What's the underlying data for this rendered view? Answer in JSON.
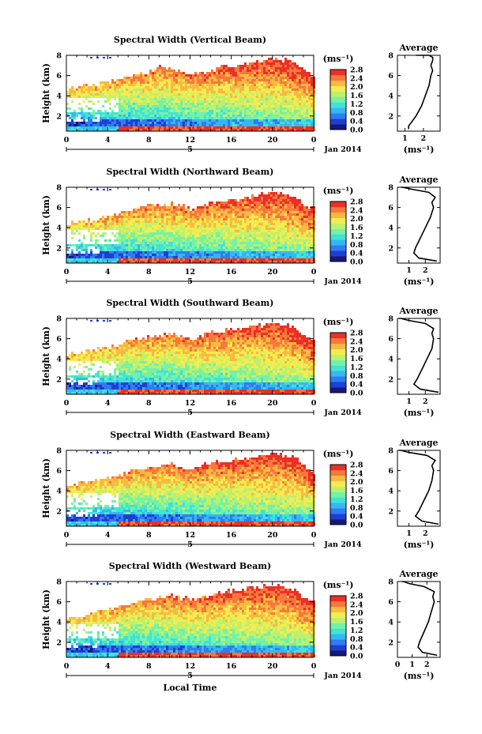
{
  "colorbar": {
    "unit": "(ms⁻¹)",
    "ticks": [
      "0.0",
      "0.4",
      "0.8",
      "1.2",
      "1.6",
      "2.0",
      "2.4",
      "2.8"
    ],
    "colors": [
      "#15197a",
      "#1f3ed6",
      "#2f7df0",
      "#34b8f2",
      "#42e3d6",
      "#74f2a6",
      "#bff06c",
      "#f3ec4f",
      "#f9b941",
      "#f6793a",
      "#ea3027"
    ]
  },
  "date_label": "Jan 2014",
  "date_day": "5",
  "x_label": "Local Time",
  "avg_title": "Average",
  "avg_unit": "(ms⁻¹)",
  "chart_data": [
    {
      "type": "heatmap",
      "title": "Spectral Width (Vertical Beam)",
      "ylabel": "Height (km)",
      "xlabel": "",
      "x_ticks": [
        "0",
        "4",
        "8",
        "12",
        "16",
        "20",
        "0"
      ],
      "y_ticks": [
        "2",
        "4",
        "6",
        "8"
      ],
      "ylim": [
        0.5,
        8
      ],
      "xlim": [
        0,
        24
      ],
      "colorbar_range": [
        0.0,
        2.8
      ],
      "cloud_top_km": [
        [
          0,
          4.8
        ],
        [
          2,
          5.1
        ],
        [
          4,
          5.5
        ],
        [
          6,
          6.0
        ],
        [
          8,
          6.5
        ],
        [
          9,
          7.0
        ],
        [
          10,
          6.8
        ],
        [
          12,
          6.3
        ],
        [
          14,
          6.5
        ],
        [
          15,
          7.2
        ],
        [
          16,
          7.0
        ],
        [
          18,
          7.5
        ],
        [
          20,
          7.8
        ],
        [
          22,
          7.5
        ],
        [
          23,
          6.5
        ],
        [
          24,
          6.0
        ]
      ],
      "average": {
        "x": [
          1.2,
          1.2,
          1.4,
          1.6,
          1.9,
          2.1,
          2.3,
          2.4,
          2.5,
          2.4,
          2.5,
          2.5,
          2.3,
          1.6
        ],
        "y": [
          0.7,
          1.0,
          1.5,
          2.0,
          3.0,
          4.0,
          5.0,
          6.0,
          6.5,
          7.0,
          7.5,
          7.8,
          8.0,
          8.0
        ],
        "xlim": [
          0.6,
          2.9
        ],
        "ylim": [
          0.5,
          8
        ],
        "x_ticks": [
          1,
          2
        ],
        "y_ticks": [
          2,
          4,
          6,
          8
        ]
      }
    },
    {
      "type": "heatmap",
      "title": "Spectral Width (Northward Beam)",
      "ylabel": "Height (km)",
      "xlabel": "",
      "x_ticks": [
        "0",
        "4",
        "8",
        "12",
        "16",
        "20",
        "0"
      ],
      "y_ticks": [
        "2",
        "4",
        "6",
        "8"
      ],
      "ylim": [
        0.5,
        8
      ],
      "xlim": [
        0,
        24
      ],
      "colorbar_range": [
        0.0,
        2.8
      ],
      "cloud_top_km": [
        [
          0,
          4.5
        ],
        [
          2,
          4.8
        ],
        [
          4,
          5.2
        ],
        [
          6,
          5.8
        ],
        [
          8,
          6.3
        ],
        [
          10,
          6.5
        ],
        [
          12,
          6.0
        ],
        [
          14,
          6.6
        ],
        [
          16,
          6.8
        ],
        [
          18,
          7.3
        ],
        [
          20,
          7.6
        ],
        [
          22,
          7.4
        ],
        [
          23,
          6.4
        ],
        [
          24,
          6.0
        ]
      ],
      "average": {
        "x": [
          2.7,
          1.6,
          1.3,
          1.4,
          1.7,
          2.0,
          2.3,
          2.5,
          2.4,
          2.6,
          2.2,
          1.2,
          0.6,
          0.5
        ],
        "y": [
          0.7,
          1.0,
          1.5,
          2.0,
          3.0,
          4.0,
          5.0,
          6.0,
          6.5,
          7.0,
          7.5,
          7.8,
          8.0,
          8.0
        ],
        "xlim": [
          0.3,
          2.9
        ],
        "ylim": [
          0.5,
          8
        ],
        "x_ticks": [
          1,
          2
        ],
        "y_ticks": [
          2,
          4,
          6,
          8
        ]
      }
    },
    {
      "type": "heatmap",
      "title": "Spectral Width (Southward Beam)",
      "ylabel": "Height (km)",
      "xlabel": "",
      "x_ticks": [
        "0",
        "4",
        "8",
        "12",
        "16",
        "20",
        "0"
      ],
      "y_ticks": [
        "2",
        "4",
        "6",
        "8"
      ],
      "ylim": [
        0.5,
        8
      ],
      "xlim": [
        0,
        24
      ],
      "colorbar_range": [
        0.0,
        2.8
      ],
      "cloud_top_km": [
        [
          0,
          4.6
        ],
        [
          2,
          4.9
        ],
        [
          4,
          5.3
        ],
        [
          6,
          5.9
        ],
        [
          8,
          6.2
        ],
        [
          10,
          6.6
        ],
        [
          12,
          6.1
        ],
        [
          14,
          6.8
        ],
        [
          16,
          7.0
        ],
        [
          18,
          7.3
        ],
        [
          20,
          7.6
        ],
        [
          22,
          7.3
        ],
        [
          23,
          6.5
        ],
        [
          24,
          6.0
        ]
      ],
      "average": {
        "x": [
          2.8,
          1.7,
          1.3,
          1.5,
          1.8,
          2.1,
          2.4,
          2.5,
          2.4,
          2.5,
          2.0,
          1.0,
          0.5,
          0.4
        ],
        "y": [
          0.7,
          1.0,
          1.5,
          2.0,
          3.0,
          4.0,
          5.0,
          6.0,
          6.5,
          7.0,
          7.5,
          7.8,
          8.0,
          8.0
        ],
        "xlim": [
          0.3,
          2.9
        ],
        "ylim": [
          0.5,
          8
        ],
        "x_ticks": [
          1,
          2
        ],
        "y_ticks": [
          2,
          4,
          6,
          8
        ]
      }
    },
    {
      "type": "heatmap",
      "title": "Spectral Width (Eastward Beam)",
      "ylabel": "Height (km)",
      "xlabel": "",
      "x_ticks": [
        "0",
        "4",
        "8",
        "12",
        "16",
        "20",
        "0"
      ],
      "y_ticks": [
        "2",
        "4",
        "6",
        "8"
      ],
      "ylim": [
        0.5,
        8
      ],
      "xlim": [
        0,
        24
      ],
      "colorbar_range": [
        0.0,
        2.8
      ],
      "cloud_top_km": [
        [
          0,
          4.7
        ],
        [
          2,
          5.0
        ],
        [
          4,
          5.4
        ],
        [
          6,
          6.0
        ],
        [
          8,
          6.4
        ],
        [
          10,
          6.8
        ],
        [
          12,
          6.2
        ],
        [
          14,
          6.9
        ],
        [
          16,
          7.1
        ],
        [
          18,
          7.4
        ],
        [
          20,
          7.8
        ],
        [
          22,
          7.5
        ],
        [
          23,
          6.6
        ],
        [
          24,
          6.0
        ]
      ],
      "average": {
        "x": [
          2.8,
          1.8,
          1.4,
          1.6,
          1.9,
          2.2,
          2.4,
          2.5,
          2.4,
          2.6,
          2.1,
          1.0,
          0.5,
          0.4
        ],
        "y": [
          0.7,
          1.0,
          1.5,
          2.0,
          3.0,
          4.0,
          5.0,
          6.0,
          6.5,
          7.0,
          7.5,
          7.8,
          8.0,
          8.0
        ],
        "xlim": [
          0.3,
          2.9
        ],
        "ylim": [
          0.5,
          8
        ],
        "x_ticks": [
          1,
          2
        ],
        "y_ticks": [
          2,
          4,
          6,
          8
        ]
      }
    },
    {
      "type": "heatmap",
      "title": "Spectral Width (Westward Beam)",
      "ylabel": "Height (km)",
      "xlabel": "Local Time",
      "x_ticks": [
        "0",
        "4",
        "8",
        "12",
        "16",
        "20",
        "0"
      ],
      "y_ticks": [
        "2",
        "4",
        "6",
        "8"
      ],
      "ylim": [
        0.5,
        8
      ],
      "xlim": [
        0,
        24
      ],
      "colorbar_range": [
        0.0,
        2.8
      ],
      "cloud_top_km": [
        [
          0,
          4.5
        ],
        [
          2,
          4.9
        ],
        [
          4,
          5.3
        ],
        [
          6,
          5.9
        ],
        [
          8,
          6.4
        ],
        [
          10,
          6.7
        ],
        [
          12,
          6.3
        ],
        [
          14,
          6.9
        ],
        [
          16,
          7.2
        ],
        [
          18,
          7.5
        ],
        [
          20,
          7.7
        ],
        [
          22,
          7.4
        ],
        [
          23,
          6.5
        ],
        [
          24,
          6.0
        ]
      ],
      "average": {
        "x": [
          2.7,
          1.7,
          1.4,
          1.5,
          1.8,
          2.1,
          2.3,
          2.5,
          2.4,
          2.5,
          1.8,
          0.8,
          0.4,
          0.3
        ],
        "y": [
          0.7,
          1.0,
          1.5,
          2.0,
          3.0,
          4.0,
          5.0,
          6.0,
          6.5,
          7.0,
          7.5,
          7.8,
          8.0,
          8.0
        ],
        "xlim": [
          0,
          2.9
        ],
        "ylim": [
          0.5,
          8
        ],
        "x_ticks": [
          0,
          1,
          2
        ],
        "y_ticks": [
          2,
          4,
          6,
          8
        ]
      }
    }
  ]
}
